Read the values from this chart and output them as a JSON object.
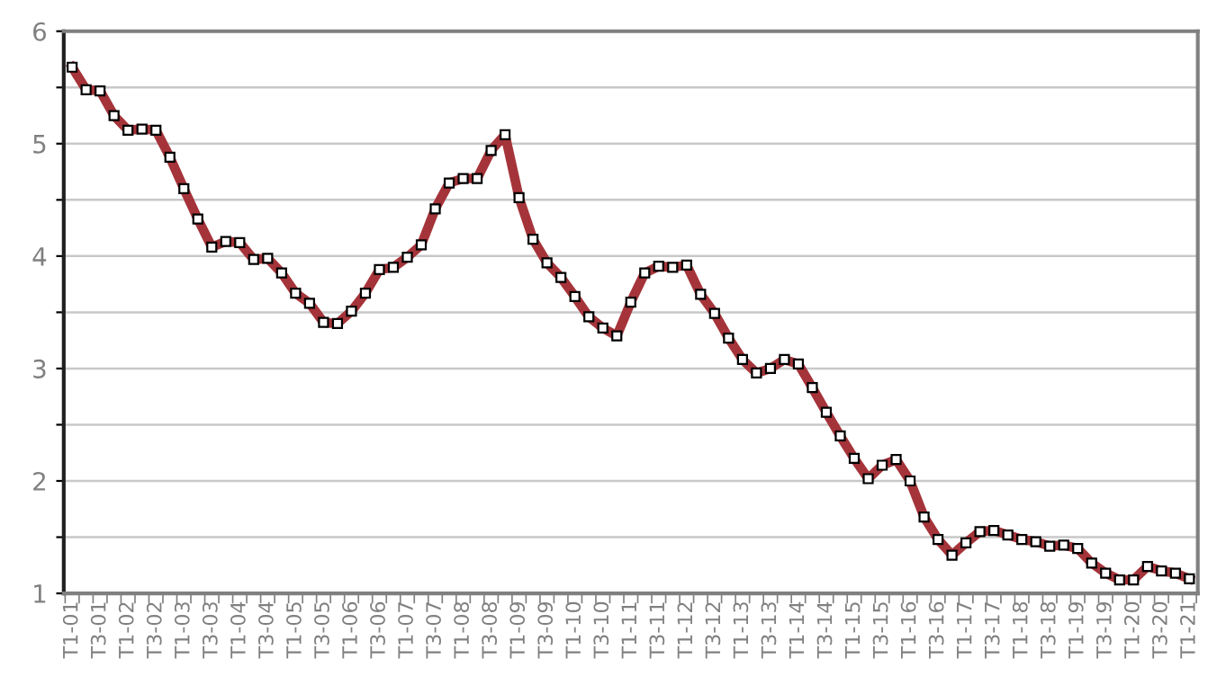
{
  "chart_data": {
    "type": "line",
    "categories": [
      "T1-01",
      null,
      "T3-01",
      null,
      "T1-02",
      null,
      "T3-02",
      null,
      "T1-03",
      null,
      "T3-03",
      null,
      "T1-04",
      null,
      "T3-04",
      null,
      "T1-05",
      null,
      "T3-05",
      null,
      "T1-06",
      null,
      "T3-06",
      null,
      "T1-07",
      null,
      "T3-07",
      null,
      "T1-08",
      null,
      "T3-08",
      null,
      "T1-09",
      null,
      "T3-09",
      null,
      "T1-10",
      null,
      "T3-10",
      null,
      "T1-11",
      null,
      "T3-11",
      null,
      "T1-12",
      null,
      "T3-12",
      null,
      "T1-13",
      null,
      "T3-13",
      null,
      "T1-14",
      null,
      "T3-14",
      null,
      "T1-15",
      null,
      "T3-15",
      null,
      "T1-16",
      null,
      "T3-16",
      null,
      "T1-17",
      null,
      "T3-17",
      null,
      "T1-18",
      null,
      "T3-18",
      null,
      "T1-19",
      null,
      "T3-19",
      null,
      "T1-20",
      null,
      "T3-20",
      null,
      "T1-21"
    ],
    "series": [
      {
        "color": "#a5343a",
        "values": [
          5.68,
          5.48,
          5.47,
          5.25,
          5.12,
          5.13,
          5.12,
          4.88,
          4.6,
          4.33,
          4.08,
          4.13,
          4.12,
          3.97,
          3.98,
          3.85,
          3.67,
          3.58,
          3.41,
          3.4,
          3.51,
          3.67,
          3.88,
          3.9,
          3.99,
          4.1,
          4.42,
          4.65,
          4.69,
          4.69,
          4.94,
          5.08,
          4.52,
          4.15,
          3.94,
          3.81,
          3.64,
          3.46,
          3.36,
          3.29,
          3.59,
          3.85,
          3.91,
          3.9,
          3.92,
          3.66,
          3.49,
          3.27,
          3.08,
          2.96,
          3.0,
          3.08,
          3.04,
          2.83,
          2.61,
          2.4,
          2.2,
          2.02,
          2.14,
          2.19,
          2.0,
          1.68,
          1.48,
          1.34,
          1.45,
          1.55,
          1.56,
          1.52,
          1.48,
          1.46,
          1.42,
          1.43,
          1.4,
          1.27,
          1.18,
          1.12,
          1.12,
          1.24,
          1.2,
          1.18,
          1.13
        ]
      }
    ],
    "ylim": [
      1,
      6
    ],
    "yticks": [
      1,
      {
        "value": 1.5,
        "label": null
      },
      2,
      {
        "value": 2.5,
        "label": null
      },
      3,
      {
        "value": 3.5,
        "label": null
      },
      4,
      {
        "value": 4.5,
        "label": null
      },
      5,
      {
        "value": 5.5,
        "label": null
      },
      6
    ],
    "grid": "y",
    "marker": "square",
    "line_style": "solid"
  }
}
